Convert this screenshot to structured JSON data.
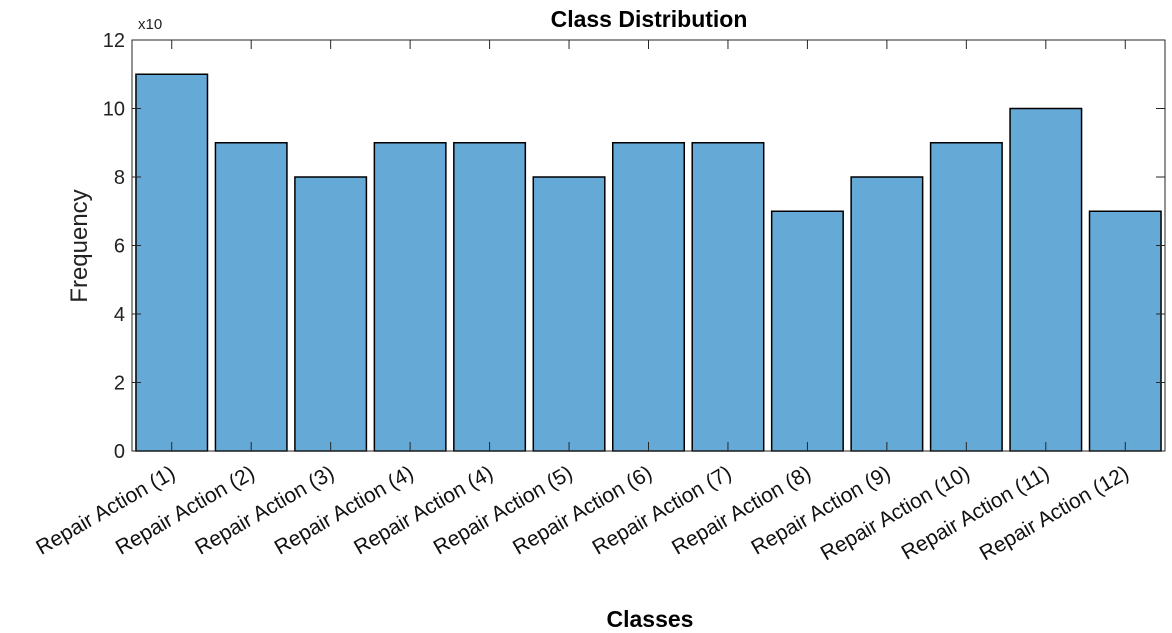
{
  "chart_data": {
    "type": "bar",
    "title": "Class Distribution",
    "xlabel": "Classes",
    "ylabel": "Frequency",
    "y_multiplier": "x10",
    "ylim": [
      0,
      12
    ],
    "yticks": [
      0,
      2,
      4,
      6,
      8,
      10,
      12
    ],
    "grid": false,
    "bar_color": "#65a9d7",
    "categories": [
      "Repair Action (1)",
      "Repair Action (2)",
      "Repair Action (3)",
      "Repair Action (4)",
      "Repair Action (4)",
      "Repair Action (5)",
      "Repair Action (6)",
      "Repair Action (7)",
      "Repair Action (8)",
      "Repair Action (9)",
      "Repair Action (10)",
      "Repair Action (11)",
      "Repair Action (12)"
    ],
    "values": [
      11,
      9,
      8,
      9,
      9,
      8,
      9,
      9,
      7,
      8,
      9,
      10,
      7
    ]
  }
}
